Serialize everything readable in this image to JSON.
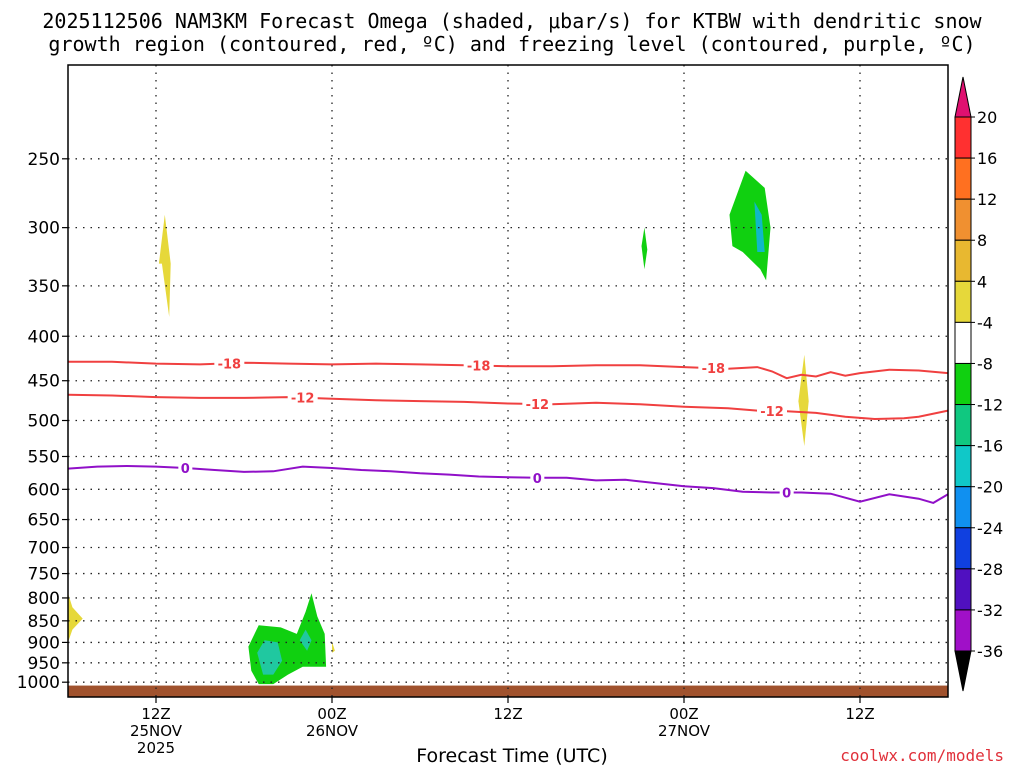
{
  "title_line1": "2025112506 NAM3KM Forecast Omega (shaded, μbar/s) for KTBW with dendritic snow",
  "title_line2": "growth region (contoured, red, ºC) and freezing level (contoured, purple, ºC)",
  "credit": "coolwx.com/models",
  "colors": {
    "contour_red": "#f04040",
    "contour_purple": "#9010c8",
    "ground": "#a0522d",
    "yellow": "#e6d83a",
    "green": "#10d010",
    "teal": "#20c8a0",
    "cyan": "#10b8c8"
  },
  "chart_data": {
    "type": "time-height contour",
    "xlabel": "Forecast Time (UTC)",
    "x_range_hours": [
      0,
      60
    ],
    "y_scale": "log pressure (inverted)",
    "y_range_mb": [
      195,
      1040
    ],
    "yticks": [
      250,
      300,
      350,
      400,
      450,
      500,
      550,
      600,
      650,
      700,
      750,
      800,
      850,
      900,
      950,
      1000
    ],
    "grid": true,
    "xticks": [
      {
        "hour": 6,
        "lines": [
          "12Z",
          "25NOV",
          "2025"
        ]
      },
      {
        "hour": 18,
        "lines": [
          "00Z",
          "26NOV"
        ]
      },
      {
        "hour": 30,
        "lines": [
          "12Z"
        ]
      },
      {
        "hour": 42,
        "lines": [
          "00Z",
          "27NOV"
        ]
      },
      {
        "hour": 54,
        "lines": [
          "12Z"
        ]
      }
    ],
    "colorbar": {
      "labels": [
        20,
        16,
        12,
        8,
        4,
        -4,
        -8,
        -12,
        -16,
        -20,
        -24,
        -28,
        -32,
        -36
      ],
      "bins": [
        "#ff3030",
        "#ff7020",
        "#f09030",
        "#e8b830",
        "#e6d83a",
        "#ffffff",
        "#10d010",
        "#10c880",
        "#10c8c8",
        "#1090f0",
        "#1040e0",
        "#5010c0",
        "#a010c8",
        "#a8a8a8"
      ],
      "top_color": "#e01070",
      "bottom_color": "#000000"
    },
    "contours": [
      {
        "value": -18,
        "color": "#f04040",
        "label": "-18",
        "label_hours": [
          11,
          28,
          44
        ],
        "points": [
          [
            0,
            428
          ],
          [
            3,
            428
          ],
          [
            6,
            430
          ],
          [
            9,
            431
          ],
          [
            12,
            429
          ],
          [
            15,
            430
          ],
          [
            18,
            431
          ],
          [
            21,
            430
          ],
          [
            24,
            431
          ],
          [
            27,
            432
          ],
          [
            30,
            433
          ],
          [
            33,
            433
          ],
          [
            36,
            432
          ],
          [
            39,
            432
          ],
          [
            42,
            434
          ],
          [
            45,
            436
          ],
          [
            47,
            434
          ],
          [
            48,
            439
          ],
          [
            49,
            447
          ],
          [
            50,
            443
          ],
          [
            51,
            445
          ],
          [
            52,
            440
          ],
          [
            53,
            444
          ],
          [
            54,
            441
          ],
          [
            56,
            437
          ],
          [
            58,
            438
          ],
          [
            60,
            441
          ]
        ]
      },
      {
        "value": -12,
        "color": "#f04040",
        "label": "-12",
        "label_hours": [
          16,
          32,
          48
        ],
        "points": [
          [
            0,
            467
          ],
          [
            3,
            468
          ],
          [
            6,
            470
          ],
          [
            9,
            471
          ],
          [
            12,
            471
          ],
          [
            15,
            470
          ],
          [
            18,
            472
          ],
          [
            21,
            474
          ],
          [
            24,
            475
          ],
          [
            27,
            476
          ],
          [
            30,
            478
          ],
          [
            33,
            479
          ],
          [
            36,
            477
          ],
          [
            39,
            479
          ],
          [
            42,
            482
          ],
          [
            45,
            484
          ],
          [
            47,
            487
          ],
          [
            49,
            488
          ],
          [
            51,
            490
          ],
          [
            53,
            495
          ],
          [
            55,
            498
          ],
          [
            57,
            497
          ],
          [
            58,
            495
          ],
          [
            60,
            487
          ]
        ]
      },
      {
        "value": 0,
        "color": "#9010c8",
        "label": "0",
        "label_hours": [
          8,
          32,
          49
        ],
        "points": [
          [
            0,
            568
          ],
          [
            2,
            565
          ],
          [
            4,
            564
          ],
          [
            6,
            565
          ],
          [
            8,
            567
          ],
          [
            10,
            570
          ],
          [
            12,
            573
          ],
          [
            14,
            572
          ],
          [
            16,
            565
          ],
          [
            18,
            567
          ],
          [
            20,
            570
          ],
          [
            22,
            572
          ],
          [
            24,
            575
          ],
          [
            26,
            577
          ],
          [
            28,
            580
          ],
          [
            30,
            581
          ],
          [
            32,
            582
          ],
          [
            34,
            582
          ],
          [
            36,
            586
          ],
          [
            38,
            585
          ],
          [
            40,
            590
          ],
          [
            42,
            595
          ],
          [
            44,
            598
          ],
          [
            46,
            604
          ],
          [
            48,
            605
          ],
          [
            50,
            605
          ],
          [
            52,
            607
          ],
          [
            54,
            620
          ],
          [
            56,
            608
          ],
          [
            58,
            615
          ],
          [
            59,
            622
          ],
          [
            60,
            608
          ]
        ]
      }
    ],
    "omega_areas": [
      {
        "color": "#e6d83a",
        "points": [
          [
            6.2,
            330
          ],
          [
            6.6,
            290
          ],
          [
            7,
            330
          ],
          [
            6.9,
            380
          ],
          [
            6.4,
            330
          ]
        ]
      },
      {
        "color": "#e6d83a",
        "points": [
          [
            0,
            790
          ],
          [
            0.3,
            820
          ],
          [
            1,
            845
          ],
          [
            0.3,
            870
          ],
          [
            0,
            900
          ]
        ]
      },
      {
        "color": "#e6d83a",
        "points": [
          [
            18,
            925
          ],
          [
            18,
            898
          ],
          [
            18.2,
            920
          ]
        ]
      },
      {
        "color": "#10d010",
        "points": [
          [
            39.1,
            315
          ],
          [
            39.3,
            300
          ],
          [
            39.5,
            318
          ],
          [
            39.3,
            335
          ]
        ]
      },
      {
        "color": "#10d010",
        "points": [
          [
            45.1,
            290
          ],
          [
            46.2,
            258
          ],
          [
            47.5,
            270
          ],
          [
            47.9,
            300
          ],
          [
            47.6,
            345
          ],
          [
            47.2,
            335
          ],
          [
            46,
            320
          ],
          [
            45.3,
            315
          ]
        ]
      },
      {
        "color": "#10b8c8",
        "points": [
          [
            46.8,
            280
          ],
          [
            47.3,
            290
          ],
          [
            47.5,
            320
          ],
          [
            47,
            320
          ]
        ]
      },
      {
        "color": "#e6d83a",
        "points": [
          [
            49.8,
            475
          ],
          [
            50.2,
            420
          ],
          [
            50.5,
            475
          ],
          [
            50.2,
            535
          ]
        ]
      },
      {
        "color": "#10d010",
        "points": [
          [
            12.3,
            910
          ],
          [
            13,
            860
          ],
          [
            14.5,
            865
          ],
          [
            15.6,
            880
          ],
          [
            16.2,
            830
          ],
          [
            16.6,
            790
          ],
          [
            17,
            840
          ],
          [
            17.5,
            880
          ],
          [
            17.6,
            960
          ],
          [
            16,
            960
          ],
          [
            15,
            980
          ],
          [
            14,
            1005
          ],
          [
            13,
            1005
          ],
          [
            12.5,
            970
          ]
        ]
      },
      {
        "color": "#20c8a0",
        "points": [
          [
            12.9,
            925
          ],
          [
            13.4,
            895
          ],
          [
            14.3,
            900
          ],
          [
            14.6,
            945
          ],
          [
            14,
            980
          ],
          [
            13.3,
            980
          ]
        ]
      },
      {
        "color": "#20c8a0",
        "points": [
          [
            15.8,
            895
          ],
          [
            16.2,
            870
          ],
          [
            16.6,
            895
          ],
          [
            16.3,
            920
          ]
        ]
      }
    ],
    "ground": {
      "top_mb": 1009,
      "bottom_mb": 1040
    }
  }
}
